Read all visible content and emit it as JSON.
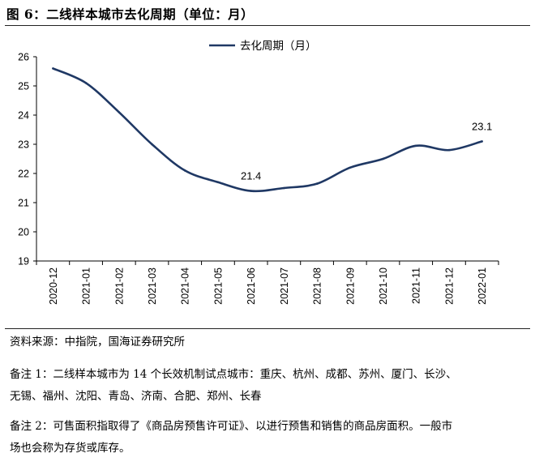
{
  "figure": {
    "title": "图 6：二线样本城市去化周期（单位：月）"
  },
  "chart_data": {
    "type": "line",
    "categories": [
      "2020-12",
      "2021-01",
      "2021-02",
      "2021-03",
      "2021-04",
      "2021-05",
      "2021-06",
      "2021-07",
      "2021-08",
      "2021-09",
      "2021-10",
      "2021-11",
      "2021-12",
      "2022-01"
    ],
    "series": [
      {
        "name": "去化周期（月）",
        "color": "#1f3864",
        "values": [
          25.6,
          25.1,
          24.1,
          23.0,
          22.1,
          21.7,
          21.4,
          21.5,
          21.65,
          22.2,
          22.5,
          22.95,
          22.8,
          23.1
        ]
      }
    ],
    "yticks": [
      19,
      20,
      21,
      22,
      23,
      24,
      25,
      26
    ],
    "ylim": [
      19,
      26
    ],
    "data_labels": [
      {
        "index": 6,
        "text": "21.4"
      },
      {
        "index": 13,
        "text": "23.1"
      }
    ],
    "legend": "top-center",
    "grid": false
  },
  "notes": {
    "source": "资料来源：中指院，国海证券研究所",
    "note1_line1": "备注 1：二线样本城市为 14 个长效机制试点城市：重庆、杭州、成都、苏州、厦门、长沙、",
    "note1_line2": "无锡、福州、沈阳、青岛、济南、合肥、郑州、长春",
    "note2_line1": "备注 2：可售面积指取得了《商品房预售许可证》、以进行预售和销售的商品房面积。一般市",
    "note2_line2": "场也会称为存货或库存。"
  }
}
